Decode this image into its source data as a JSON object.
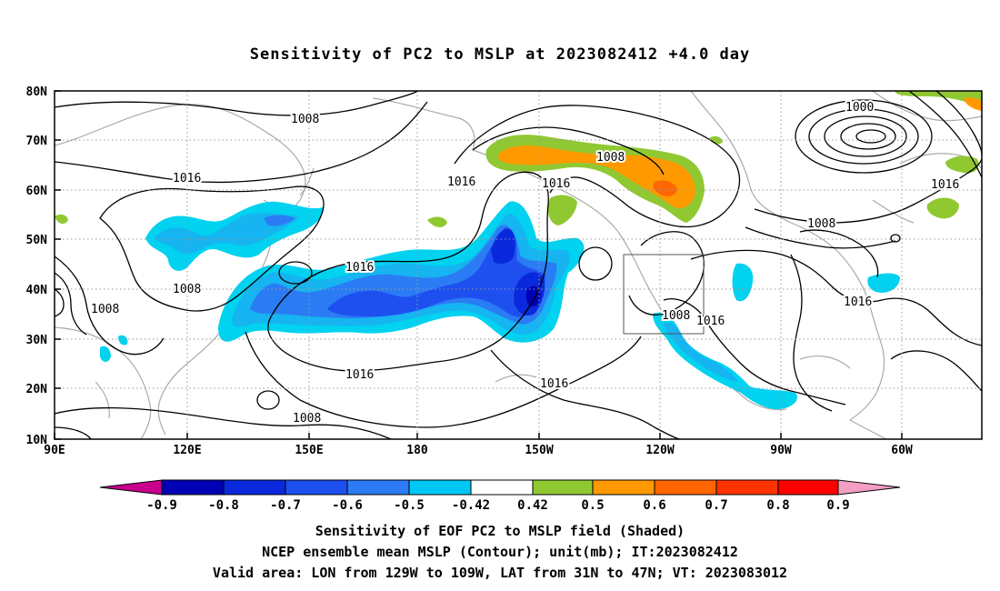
{
  "title": "Sensitivity of PC2 to MSLP at 2023082412 +4.0 day",
  "map": {
    "lon_labels": [
      "90E",
      "120E",
      "150E",
      "180",
      "150W",
      "120W",
      "90W",
      "60W"
    ],
    "lat_labels": [
      "80N",
      "70N",
      "60N",
      "50N",
      "40N",
      "30N",
      "20N",
      "10N"
    ],
    "contour_labels": [
      "1008",
      "1016",
      "1016",
      "1016",
      "1008",
      "1016",
      "1016",
      "1008",
      "1016",
      "1008",
      "1016",
      "1016",
      "1008",
      "1016",
      "1008",
      "1008",
      "1000"
    ],
    "valid_box": {
      "lon_from": "129W",
      "lon_to": "109W",
      "lat_from": "31N",
      "lat_to": "47N"
    }
  },
  "colorbar": {
    "labels": [
      "-0.9",
      "-0.8",
      "-0.7",
      "-0.6",
      "-0.5",
      "-0.42",
      "0.42",
      "0.5",
      "0.6",
      "0.7",
      "0.8",
      "0.9"
    ],
    "colors": [
      "#c8008c",
      "#0000b4",
      "#0a28dc",
      "#1e50f0",
      "#2b7cf4",
      "#16b4f0",
      "#00d2f0",
      "#ffffff",
      "#90c832",
      "#ff9900",
      "#ff6600",
      "#ff3300",
      "#ff0000",
      "#f49ec4"
    ]
  },
  "captions": {
    "line1": "Sensitivity of EOF PC2 to MSLP field (Shaded)",
    "line2": "NCEP ensemble mean MSLP (Contour); unit(mb); IT:2023082412",
    "line3": "Valid area: LON from 129W to 109W, LAT from 31N to 47N; VT: 2023083012"
  }
}
